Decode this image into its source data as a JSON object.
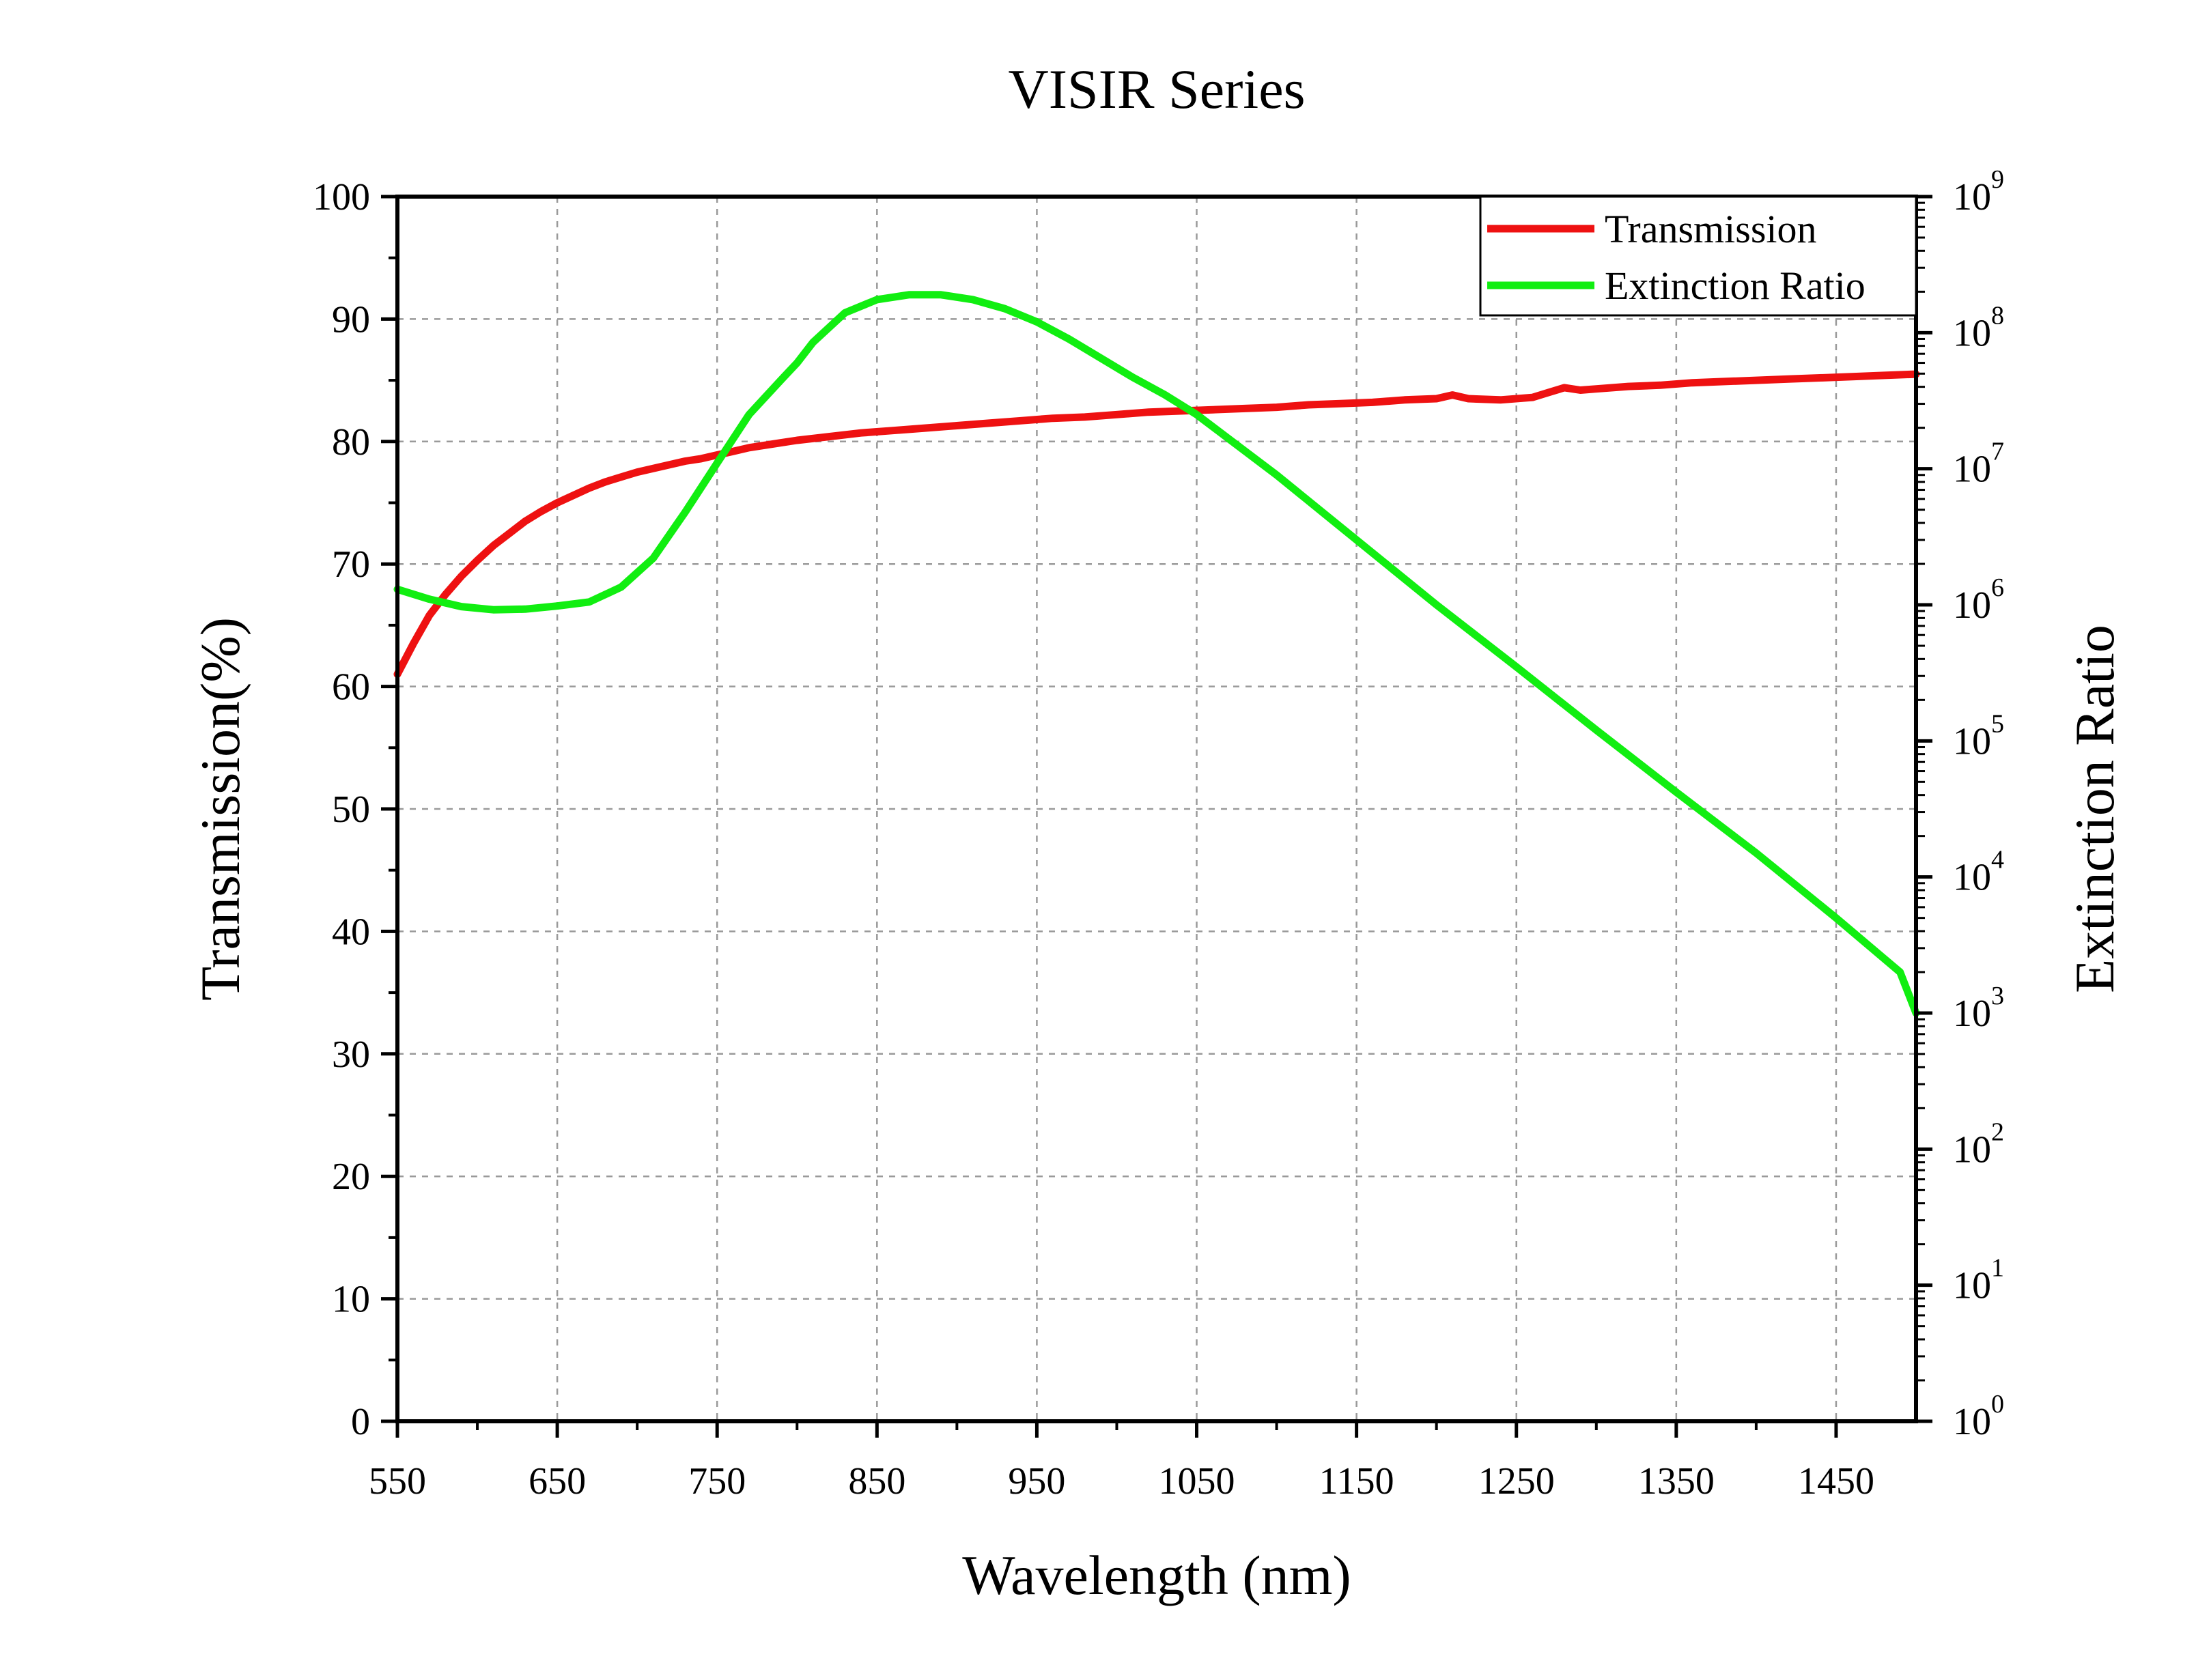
{
  "chart_data": {
    "type": "line",
    "title": "VISIR Series",
    "xlabel": "Wavelength (nm)",
    "ylabel_left": "Transmission(%)",
    "ylabel_right": "Extinction Ratio",
    "xlim": [
      550,
      1500
    ],
    "ylim_left": [
      0,
      100
    ],
    "ylim_right": [
      1,
      1000000000
    ],
    "yscale_right": "log",
    "grid": true,
    "legend_position": "top-right",
    "x_ticks": [
      "550",
      "650",
      "750",
      "850",
      "950",
      "1050",
      "1150",
      "1250",
      "1350",
      "1450"
    ],
    "y_ticks_left": [
      "0",
      "10",
      "20",
      "30",
      "40",
      "50",
      "60",
      "70",
      "80",
      "90",
      "100"
    ],
    "y_ticks_right": [
      {
        "base": "10",
        "exp": "0"
      },
      {
        "base": "10",
        "exp": "1"
      },
      {
        "base": "10",
        "exp": "2"
      },
      {
        "base": "10",
        "exp": "3"
      },
      {
        "base": "10",
        "exp": "4"
      },
      {
        "base": "10",
        "exp": "5"
      },
      {
        "base": "10",
        "exp": "6"
      },
      {
        "base": "10",
        "exp": "7"
      },
      {
        "base": "10",
        "exp": "8"
      },
      {
        "base": "10",
        "exp": "9"
      }
    ],
    "series": [
      {
        "name": "Transmission",
        "axis": "left",
        "color": "#ee1111",
        "x": [
          550,
          560,
          570,
          580,
          590,
          600,
          610,
          620,
          630,
          640,
          650,
          660,
          670,
          680,
          690,
          700,
          710,
          720,
          730,
          740,
          750,
          760,
          770,
          780,
          790,
          800,
          820,
          840,
          860,
          880,
          900,
          920,
          940,
          960,
          980,
          1000,
          1020,
          1040,
          1060,
          1080,
          1100,
          1120,
          1140,
          1160,
          1180,
          1200,
          1210,
          1220,
          1240,
          1260,
          1270,
          1280,
          1290,
          1300,
          1320,
          1340,
          1360,
          1380,
          1400,
          1420,
          1440,
          1460,
          1480,
          1500
        ],
        "y": [
          61.0,
          63.5,
          65.8,
          67.5,
          69.0,
          70.3,
          71.5,
          72.5,
          73.5,
          74.3,
          75.0,
          75.6,
          76.2,
          76.7,
          77.1,
          77.5,
          77.8,
          78.1,
          78.4,
          78.6,
          78.9,
          79.2,
          79.5,
          79.7,
          79.9,
          80.1,
          80.4,
          80.7,
          80.9,
          81.1,
          81.3,
          81.5,
          81.7,
          81.9,
          82.0,
          82.2,
          82.4,
          82.5,
          82.6,
          82.7,
          82.8,
          83.0,
          83.1,
          83.2,
          83.4,
          83.5,
          83.8,
          83.5,
          83.4,
          83.6,
          84.0,
          84.4,
          84.2,
          84.3,
          84.5,
          84.6,
          84.8,
          84.9,
          85.0,
          85.1,
          85.2,
          85.3,
          85.4,
          85.5
        ]
      },
      {
        "name": "Extinction Ratio",
        "axis": "right",
        "color": "#11ee11",
        "x": [
          550,
          570,
          590,
          610,
          630,
          650,
          670,
          690,
          710,
          730,
          750,
          770,
          790,
          800,
          810,
          830,
          850,
          870,
          890,
          910,
          930,
          950,
          970,
          990,
          1010,
          1030,
          1050,
          1100,
          1150,
          1200,
          1250,
          1300,
          1350,
          1400,
          1450,
          1490,
          1500
        ],
        "y": [
          1300000,
          1100000,
          970000,
          920000,
          930000,
          980000,
          1050000,
          1350000,
          2200000,
          4800000,
          11000000,
          25000000,
          45000000,
          60000000,
          85000000,
          140000000,
          175000000,
          190000000,
          190000000,
          175000000,
          150000000,
          120000000,
          90000000,
          65000000,
          47000000,
          35000000,
          25000000,
          9000000,
          3000000,
          1000000,
          350000,
          120000,
          42000,
          15000,
          5000,
          2000,
          1000
        ]
      }
    ]
  }
}
